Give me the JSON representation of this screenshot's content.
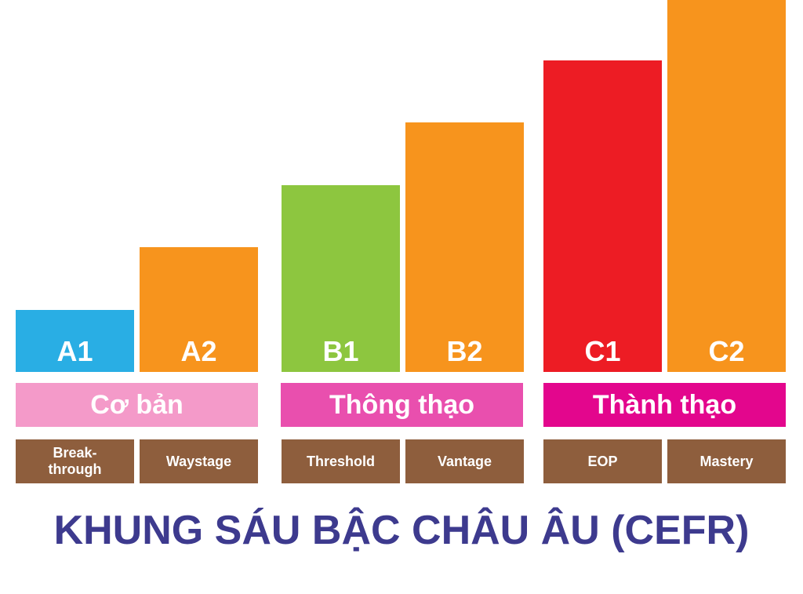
{
  "levels": [
    {
      "code": "A1",
      "height": 1,
      "color": "#29aee4"
    },
    {
      "code": "A2",
      "height": 2,
      "color": "#f7941d"
    },
    {
      "code": "B1",
      "height": 3,
      "color": "#8dc63f"
    },
    {
      "code": "B2",
      "height": 4,
      "color": "#f7941d"
    },
    {
      "code": "C1",
      "height": 5,
      "color": "#ed1c24"
    },
    {
      "code": "C2",
      "height": 6,
      "color": "#f7941d"
    }
  ],
  "groups": [
    {
      "label": "Cơ bản",
      "color": "#f49ac9"
    },
    {
      "label": "Thông thạo",
      "color": "#e94fae"
    },
    {
      "label": "Thành thạo",
      "color": "#e3068d"
    }
  ],
  "tags": [
    "Break-\nthrough",
    "Waystage",
    "Threshold",
    "Vantage",
    "EOP",
    "Mastery"
  ],
  "title": "KHUNG SÁU BẬC CHÂU ÂU (CEFR)"
}
